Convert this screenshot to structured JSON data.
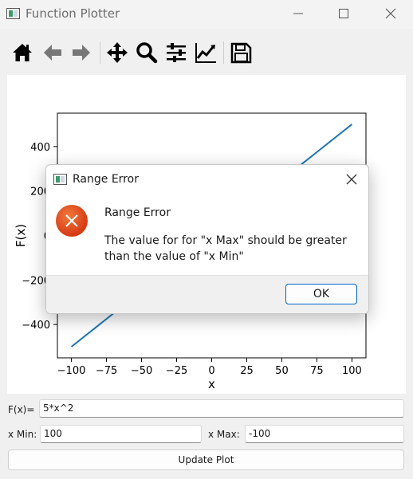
{
  "window": {
    "title": "Function Plotter"
  },
  "toolbar": {
    "items": [
      {
        "name": "home-icon"
      },
      {
        "name": "back-arrow-icon"
      },
      {
        "name": "forward-arrow-icon"
      },
      {
        "name": "pan-move-icon"
      },
      {
        "name": "zoom-magnifier-icon"
      },
      {
        "name": "subplots-sliders-icon"
      },
      {
        "name": "axes-edit-icon"
      },
      {
        "name": "save-floppy-icon"
      }
    ]
  },
  "chart_data": {
    "type": "line",
    "title": "",
    "xlabel": "x",
    "ylabel": "F(x)",
    "xlim": [
      -110,
      110
    ],
    "ylim": [
      -550,
      550
    ],
    "xticks": [
      -100,
      -75,
      -50,
      -25,
      0,
      25,
      50,
      75,
      100
    ],
    "yticks": [
      -400,
      -200,
      0,
      200,
      400
    ],
    "grid": false,
    "series": [
      {
        "color": "#1f77b4",
        "x": [
          -100,
          100
        ],
        "y": [
          -500,
          500
        ]
      }
    ]
  },
  "form": {
    "function_label": "F(x)=",
    "function_value": "5*x^2",
    "xmin_label": "x Min:",
    "xmin_value": "100",
    "xmax_label": "x Max:",
    "xmax_value": "-100",
    "update_label": "Update Plot"
  },
  "dialog": {
    "title": "Range Error",
    "heading": "Range Error",
    "message": "The value for for \"x Max\" should be greater than the value of \"x Min\"",
    "ok_label": "OK"
  }
}
